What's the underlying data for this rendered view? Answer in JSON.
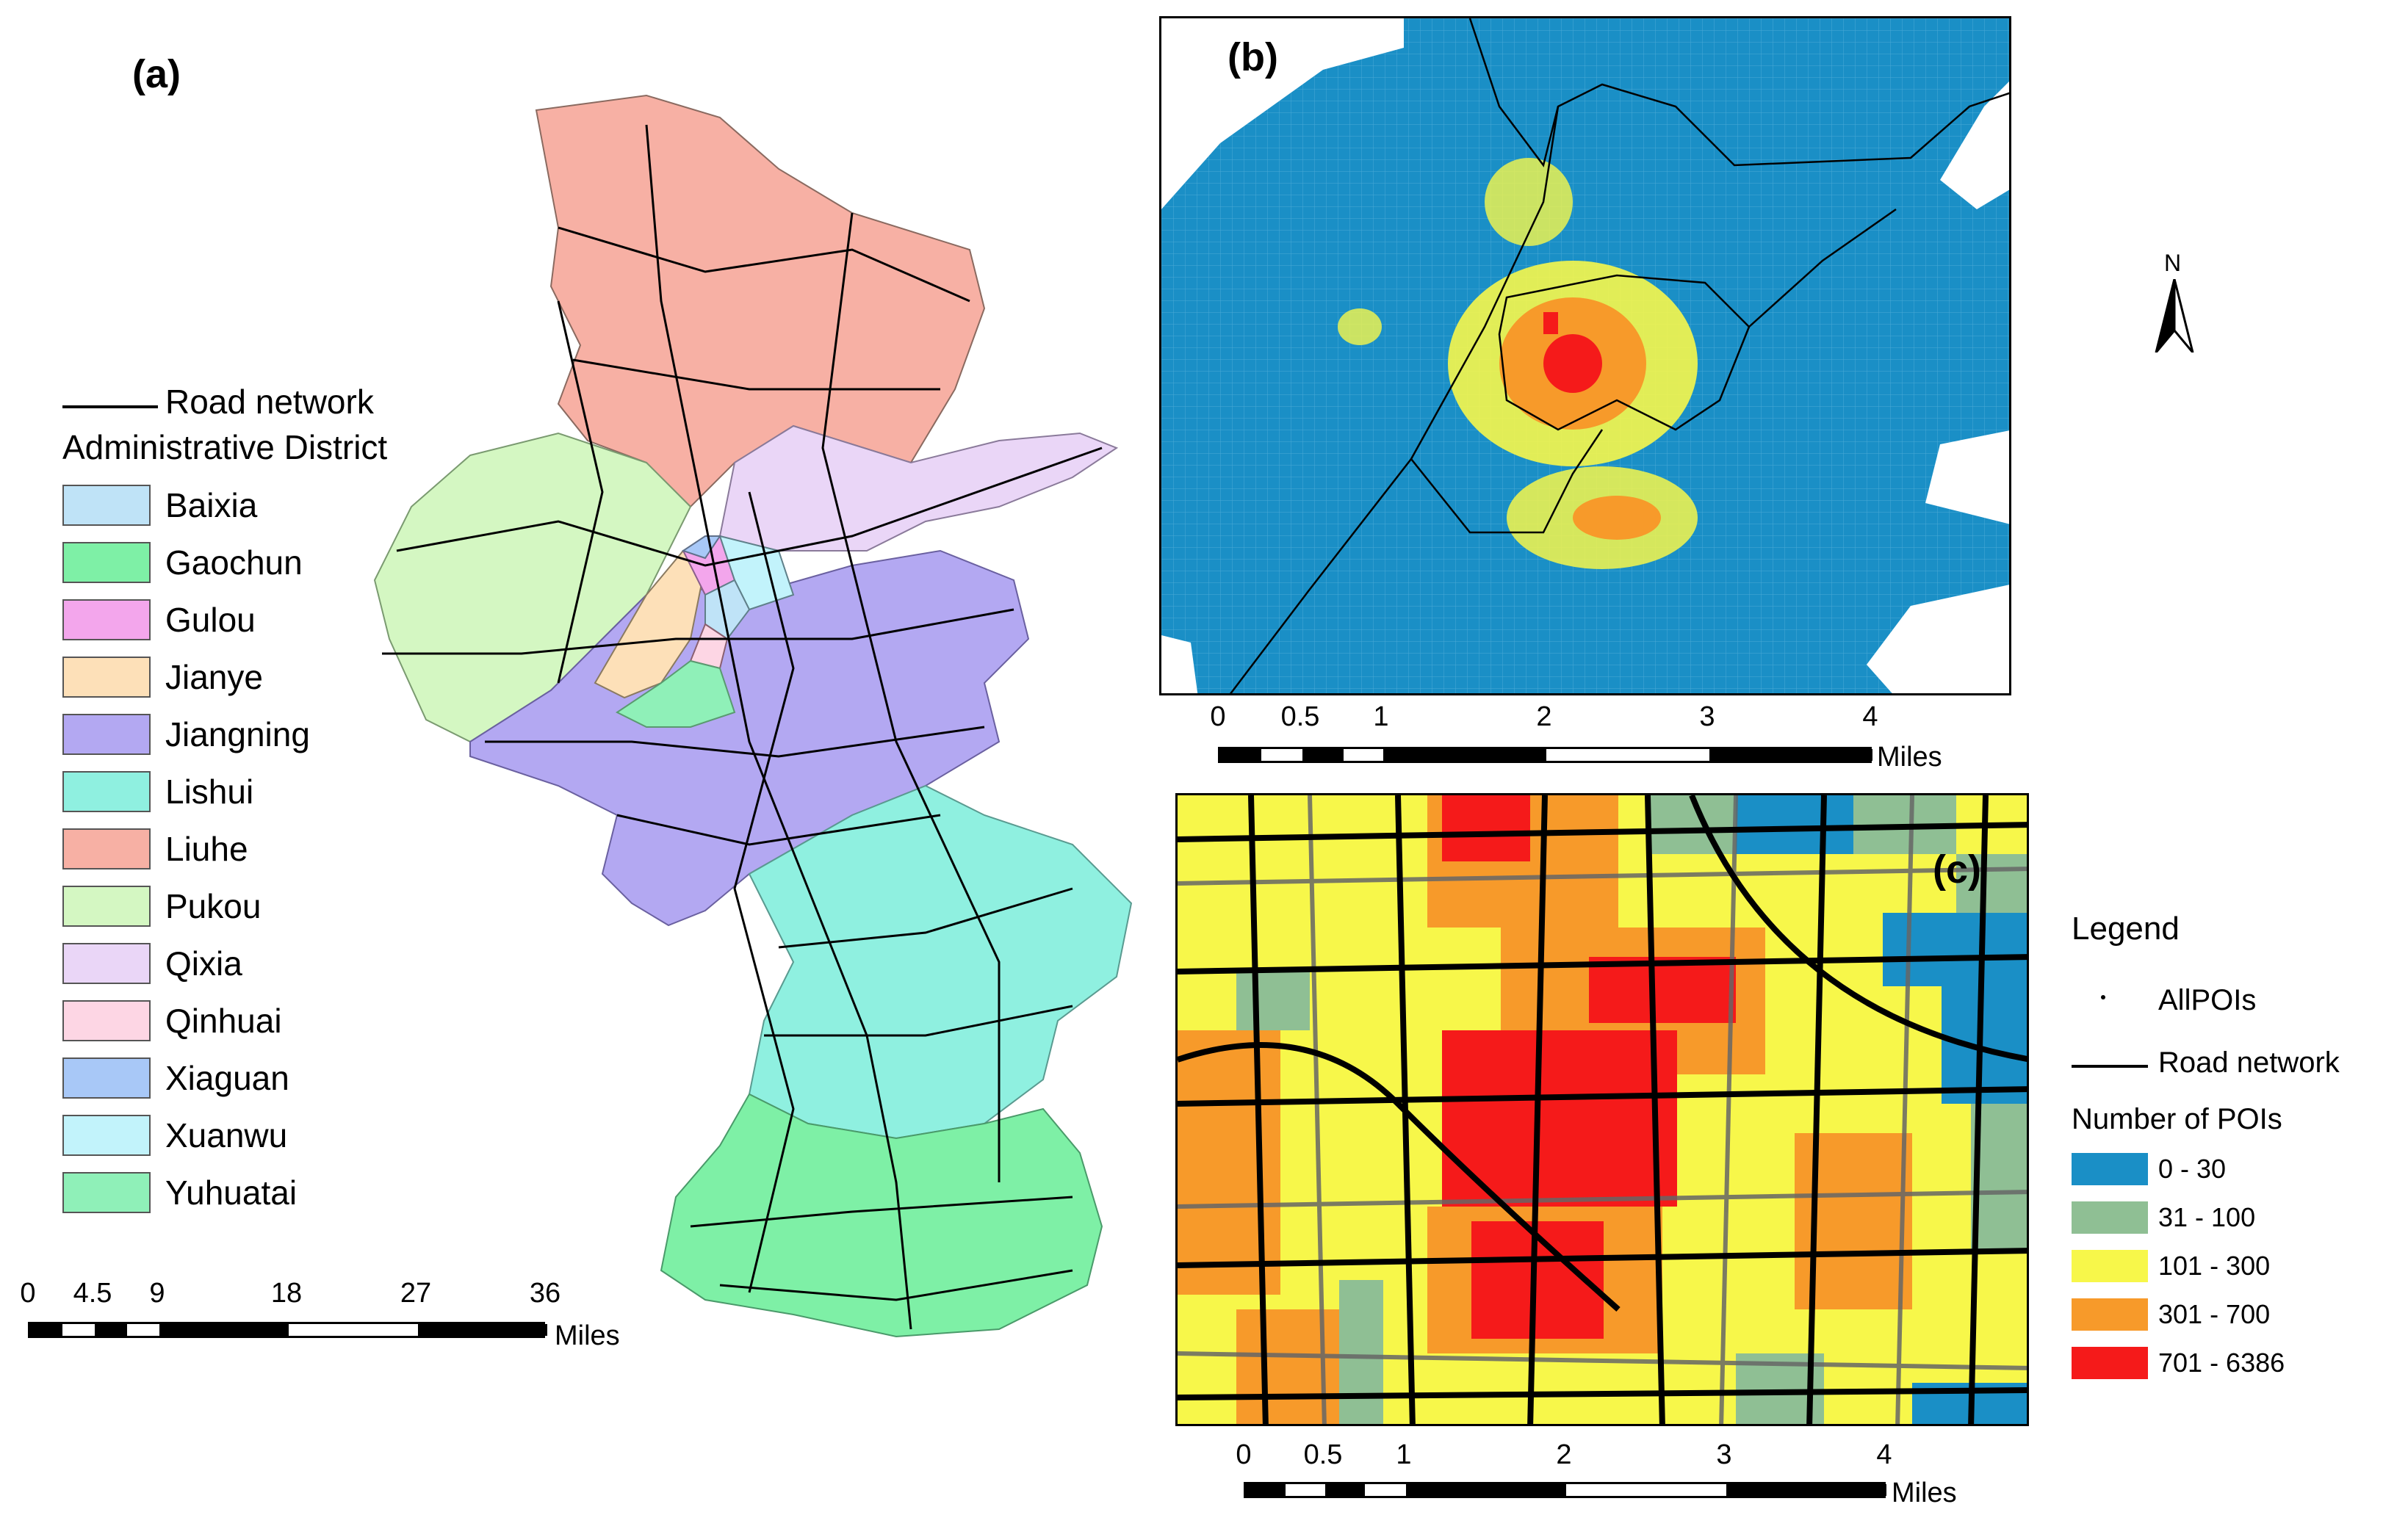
{
  "panels": {
    "a": {
      "label": "(a)"
    },
    "b": {
      "label": "(b)"
    },
    "c": {
      "label": "(c)"
    }
  },
  "legend_a": {
    "road_label": "Road network",
    "district_title": "Administrative District",
    "districts": [
      {
        "name": "Baixia",
        "color": "#bfe3f7"
      },
      {
        "name": "Gaochun",
        "color": "#7ef0a6"
      },
      {
        "name": "Gulou",
        "color": "#f3a6ec"
      },
      {
        "name": "Jianye",
        "color": "#fde0b8"
      },
      {
        "name": "Jiangning",
        "color": "#b3a8f2"
      },
      {
        "name": "Lishui",
        "color": "#8ff0e0"
      },
      {
        "name": "Liuhe",
        "color": "#f7b0a4"
      },
      {
        "name": "Pukou",
        "color": "#d4f7c2"
      },
      {
        "name": "Qixia",
        "color": "#ead6f7"
      },
      {
        "name": "Qinhuai",
        "color": "#fdd6e4"
      },
      {
        "name": "Xiaguan",
        "color": "#a8c8f7"
      },
      {
        "name": "Xuanwu",
        "color": "#c2f3fb"
      },
      {
        "name": "Yuhuatai",
        "color": "#8ff0b8"
      }
    ]
  },
  "scale_a": {
    "ticks": [
      "0",
      "4.5",
      "9",
      "18",
      "27",
      "36"
    ],
    "unit": "Miles"
  },
  "scale_b": {
    "ticks": [
      "0",
      "0.5",
      "1",
      "2",
      "3",
      "4"
    ],
    "unit": "Miles"
  },
  "scale_c": {
    "ticks": [
      "0",
      "0.5",
      "1",
      "2",
      "3",
      "4"
    ],
    "unit": "Miles"
  },
  "north": {
    "label": "N"
  },
  "legend_c": {
    "title": "Legend",
    "poi_label": "AllPOIs",
    "road_label": "Road network",
    "count_title": "Number of POIs",
    "classes": [
      {
        "range": "0  -  30",
        "color": "#1a8fc6"
      },
      {
        "range": "31  -  100",
        "color": "#8fbf94"
      },
      {
        "range": "101  -  300",
        "color": "#f7f74a"
      },
      {
        "range": "301  -  700",
        "color": "#f79a2a"
      },
      {
        "range": "701  -  6386",
        "color": "#f51a1a"
      }
    ]
  }
}
